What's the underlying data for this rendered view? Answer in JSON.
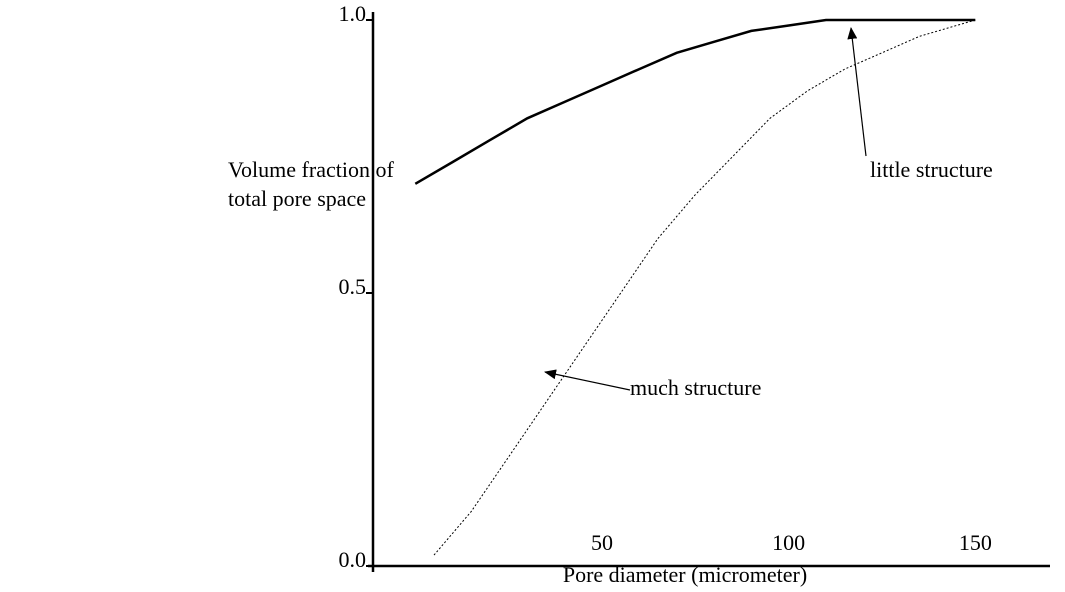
{
  "chart_data": {
    "type": "line",
    "ylabel": [
      "Volume fraction of",
      "total pore space"
    ],
    "xlabel": "Pore diameter (micrometer)",
    "xlim": [
      -10,
      170
    ],
    "xticks": [
      50,
      100,
      150
    ],
    "ylim": [
      0,
      1
    ],
    "yticks": [
      {
        "value": 0,
        "label": "0.0"
      },
      {
        "value": 0.5,
        "label": "0.5"
      },
      {
        "value": 1,
        "label": "1.0"
      }
    ],
    "grid": false,
    "series": [
      {
        "name": "little structure",
        "color": "#000000",
        "style": "solid",
        "x": [
          0,
          10,
          20,
          30,
          40,
          50,
          60,
          70,
          80,
          90,
          100,
          110,
          150
        ],
        "values": [
          0.7,
          0.74,
          0.78,
          0.82,
          0.85,
          0.88,
          0.91,
          0.94,
          0.96,
          0.98,
          0.99,
          1.0,
          1.0
        ]
      },
      {
        "name": "much structure",
        "color": "#000000",
        "style": "dotted",
        "x": [
          5,
          15,
          25,
          35,
          45,
          55,
          65,
          75,
          85,
          95,
          105,
          115,
          125,
          135,
          150
        ],
        "values": [
          0.02,
          0.1,
          0.2,
          0.3,
          0.4,
          0.5,
          0.6,
          0.68,
          0.75,
          0.82,
          0.87,
          0.91,
          0.94,
          0.97,
          1.0
        ]
      }
    ]
  }
}
